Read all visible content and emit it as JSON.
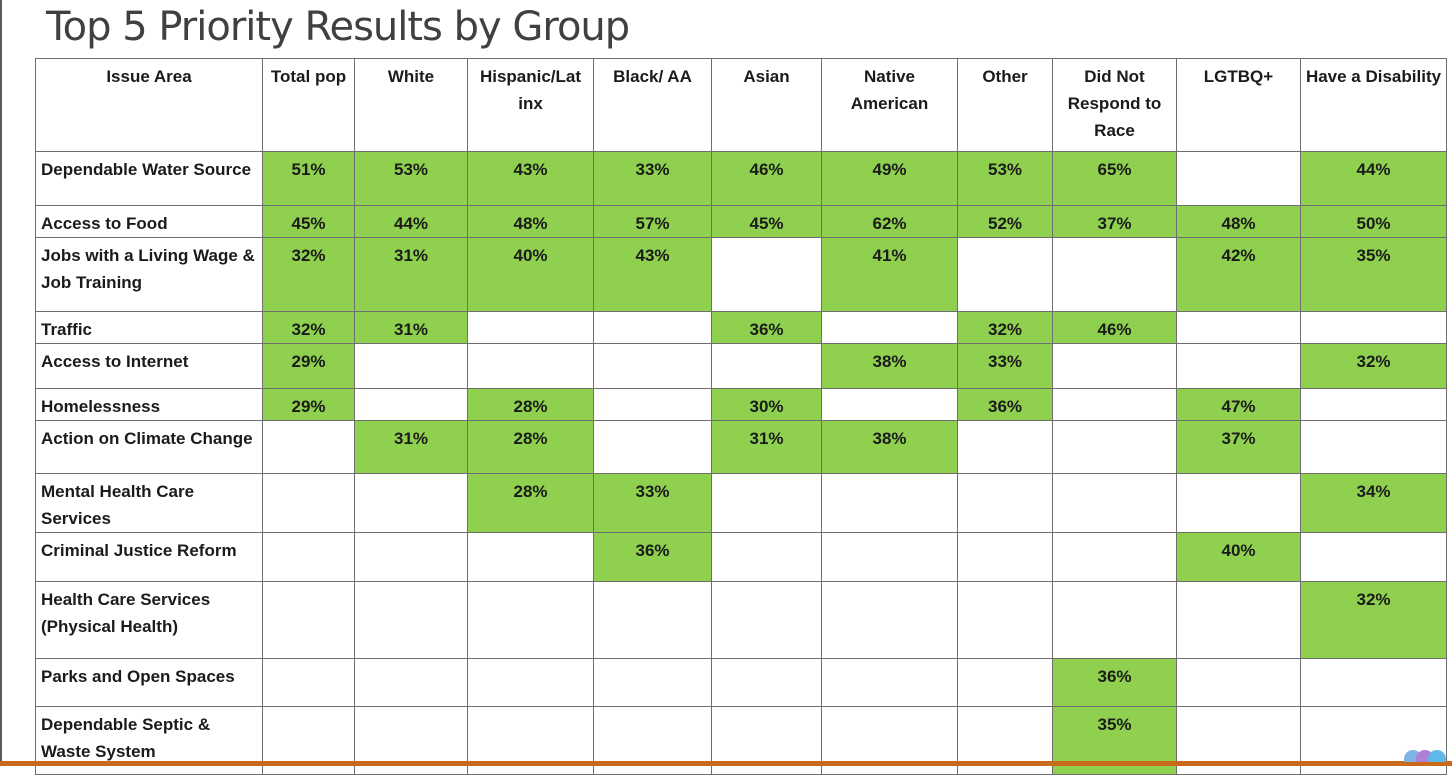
{
  "title": "Top 5 Priority Results by Group",
  "colors": {
    "highlight": "#8fd14f",
    "grid_line": "#6e6e6e",
    "title_text": "#404040",
    "bottom_bar": "#c96a1b"
  },
  "chart_data": {
    "type": "table",
    "title": "Top 5 Priority Results by Group",
    "columns": [
      "Issue Area",
      "Total pop",
      "White",
      "Hispanic/Lat inx",
      "Black/ AA",
      "Asian",
      "Native American",
      "Other",
      "Did Not Respond to Race",
      "LGTBQ+",
      "Have a Disability"
    ],
    "rows": [
      {
        "issue": "Dependable Water Source",
        "values": [
          "51%",
          "53%",
          "43%",
          "33%",
          "46%",
          "49%",
          "53%",
          "65%",
          "",
          "44%"
        ]
      },
      {
        "issue": "Access to Food",
        "values": [
          "45%",
          "44%",
          "48%",
          "57%",
          "45%",
          "62%",
          "52%",
          "37%",
          "48%",
          "50%"
        ]
      },
      {
        "issue": "Jobs with a Living Wage & Job Training",
        "values": [
          "32%",
          "31%",
          "40%",
          "43%",
          "",
          "41%",
          "",
          "",
          "42%",
          "35%"
        ]
      },
      {
        "issue": "Traffic",
        "values": [
          "32%",
          "31%",
          "",
          "",
          "36%",
          "",
          "32%",
          "46%",
          "",
          ""
        ]
      },
      {
        "issue": "Access to Internet",
        "values": [
          "29%",
          "",
          "",
          "",
          "",
          "38%",
          "33%",
          "",
          "",
          "32%"
        ]
      },
      {
        "issue": "Homelessness",
        "values": [
          "29%",
          "",
          "28%",
          "",
          "30%",
          "",
          "36%",
          "",
          "47%",
          ""
        ]
      },
      {
        "issue": "Action on Climate Change",
        "values": [
          "",
          "31%",
          "28%",
          "",
          "31%",
          "38%",
          "",
          "",
          "37%",
          ""
        ]
      },
      {
        "issue": "Mental Health Care Services",
        "values": [
          "",
          "",
          "28%",
          "33%",
          "",
          "",
          "",
          "",
          "",
          "34%"
        ]
      },
      {
        "issue": "Criminal Justice Reform",
        "values": [
          "",
          "",
          "",
          "36%",
          "",
          "",
          "",
          "",
          "40%",
          ""
        ]
      },
      {
        "issue": "Health Care Services (Physical Health)",
        "values": [
          "",
          "",
          "",
          "",
          "",
          "",
          "",
          "",
          "",
          "32%"
        ]
      },
      {
        "issue": "Parks and Open Spaces",
        "values": [
          "",
          "",
          "",
          "",
          "",
          "",
          "",
          "36%",
          "",
          ""
        ]
      },
      {
        "issue": "Dependable Septic & Waste System",
        "values": [
          "",
          "",
          "",
          "",
          "",
          "",
          "",
          "35%",
          "",
          ""
        ]
      }
    ]
  }
}
